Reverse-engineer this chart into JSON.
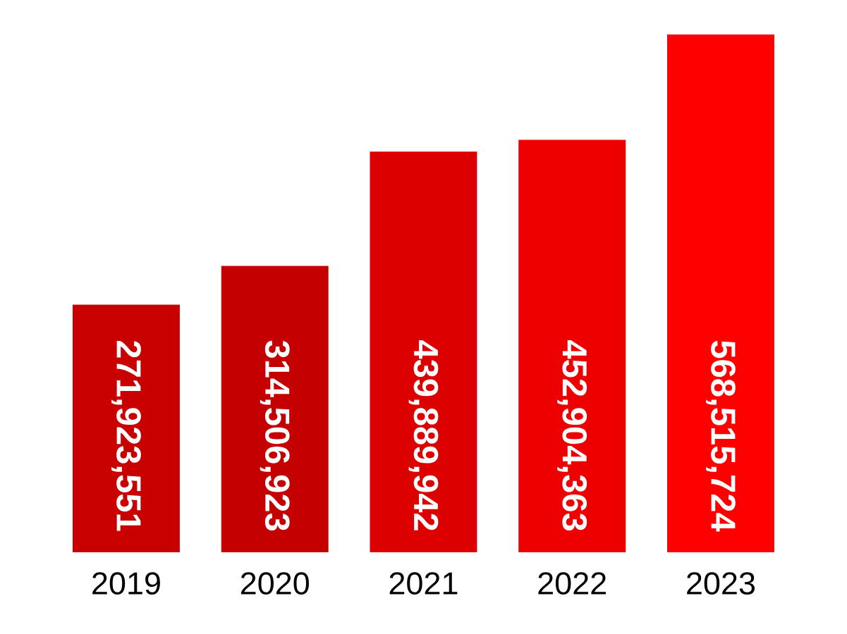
{
  "chart_data": {
    "type": "bar",
    "categories": [
      "2019",
      "2020",
      "2021",
      "2022",
      "2023"
    ],
    "values": [
      271923551,
      314506923,
      439889942,
      452904363,
      568515724
    ],
    "colors": [
      "#c80000",
      "#c40000",
      "#dd0000",
      "#ee0000",
      "#ff0000"
    ],
    "value_labels": [
      "271,923,551",
      "314,506,923",
      "439,889,942",
      "452,904,363",
      "568,515,724"
    ],
    "tick_labels": "x"
  }
}
